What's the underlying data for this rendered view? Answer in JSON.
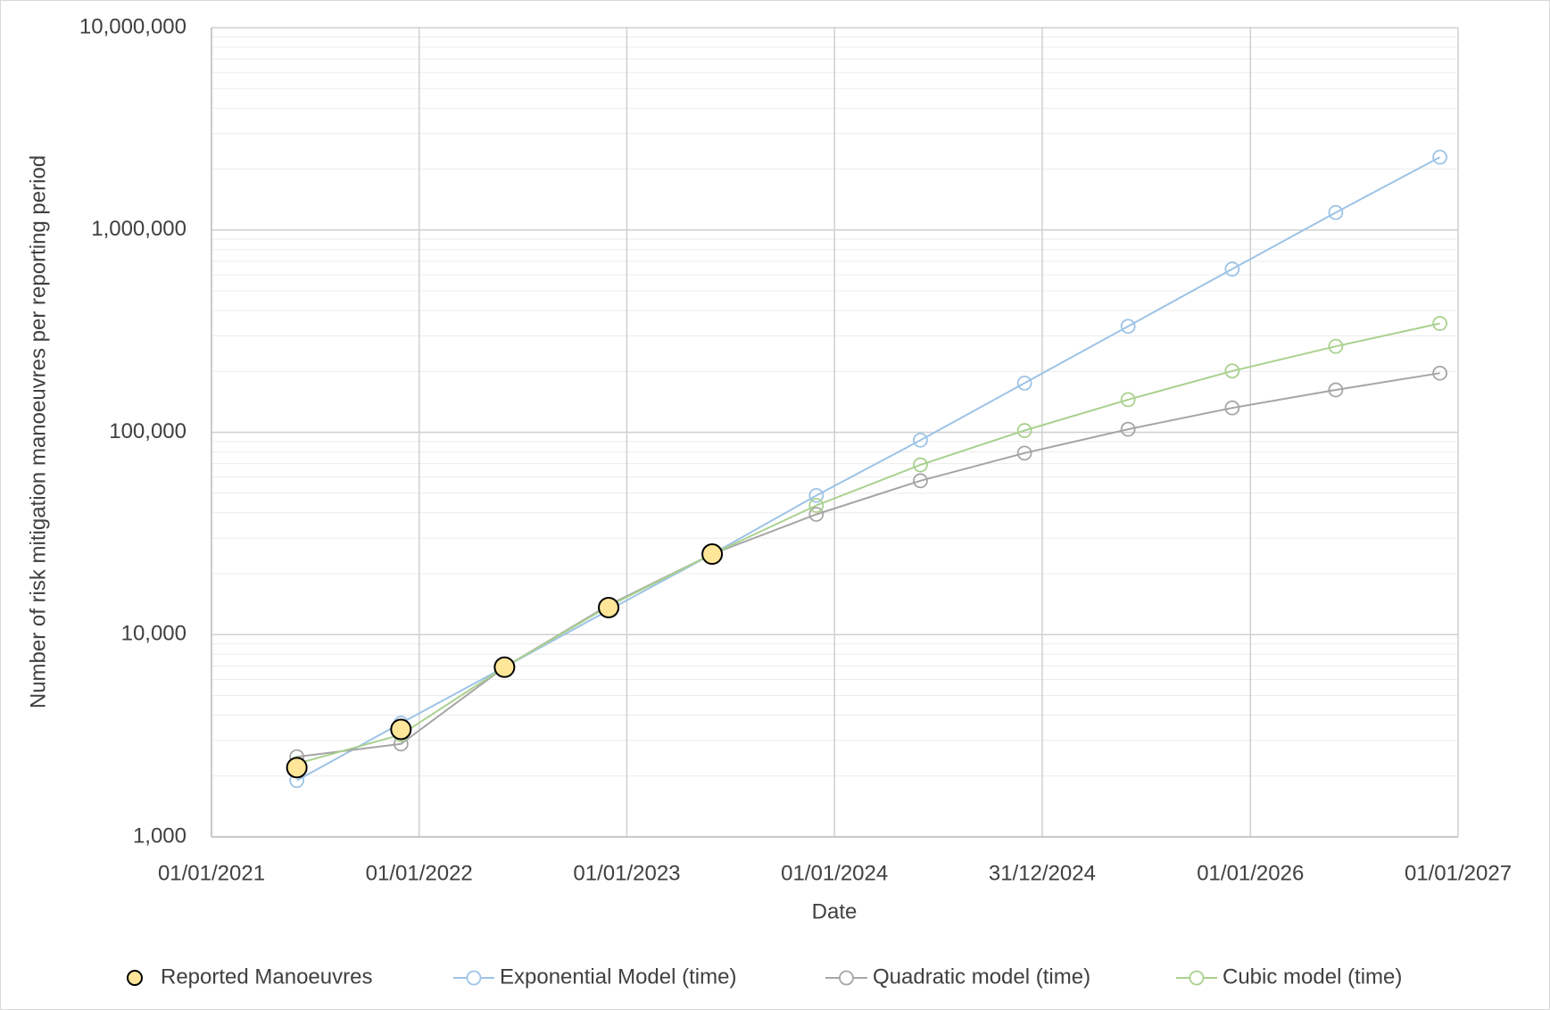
{
  "chart_data": {
    "type": "line",
    "x_label": "Date",
    "y_label": "Number of risk mitigation manoeuvres per reporting period",
    "x": [
      "31/05/2021",
      "30/11/2021",
      "31/05/2022",
      "30/11/2022",
      "31/05/2023",
      "30/11/2023",
      "31/05/2024",
      "30/11/2024",
      "31/05/2025",
      "30/11/2025",
      "31/05/2026",
      "30/11/2026"
    ],
    "xlim": [
      "01/01/2021",
      "01/01/2027"
    ],
    "xticks": [
      "01/01/2021",
      "01/01/2022",
      "01/01/2023",
      "01/01/2024",
      "31/12/2024",
      "01/01/2026",
      "01/01/2027"
    ],
    "ylim": [
      1000,
      10000000
    ],
    "yticks": [
      {
        "value": 1000,
        "label": "1,000"
      },
      {
        "value": 10000,
        "label": "10,000"
      },
      {
        "value": 100000,
        "label": "100,000"
      },
      {
        "value": 1000000,
        "label": "1,000,000"
      },
      {
        "value": 10000000,
        "label": "10,000,000"
      }
    ],
    "log_scale": true,
    "grid": true,
    "minor_grid": true,
    "legend": "bottom",
    "series": [
      {
        "name": "Reported Manoeuvres",
        "color": "#ffe699",
        "line": false,
        "values": [
          2200,
          3400,
          6900,
          13600,
          25000,
          null,
          null,
          null,
          null,
          null,
          null,
          null
        ]
      },
      {
        "name": "Exponential Model (time)",
        "color": "#9dc3e6",
        "line": true,
        "values": [
          1900,
          3650,
          6900,
          13200,
          25000,
          48700,
          91400,
          175000,
          334000,
          641000,
          1220000,
          2290000
        ]
      },
      {
        "name": "Quadratic model (time)",
        "color": "#a5a5a5",
        "line": true,
        "values": [
          2490,
          2880,
          6900,
          14000,
          25000,
          39300,
          57600,
          78900,
          103500,
          132000,
          162000,
          196000
        ]
      },
      {
        "name": "Cubic model (time)",
        "color": "#a9d18e",
        "line": true,
        "values": [
          2300,
          3200,
          6900,
          13800,
          25000,
          43500,
          69000,
          102000,
          145000,
          201000,
          266000,
          345000
        ]
      }
    ]
  }
}
